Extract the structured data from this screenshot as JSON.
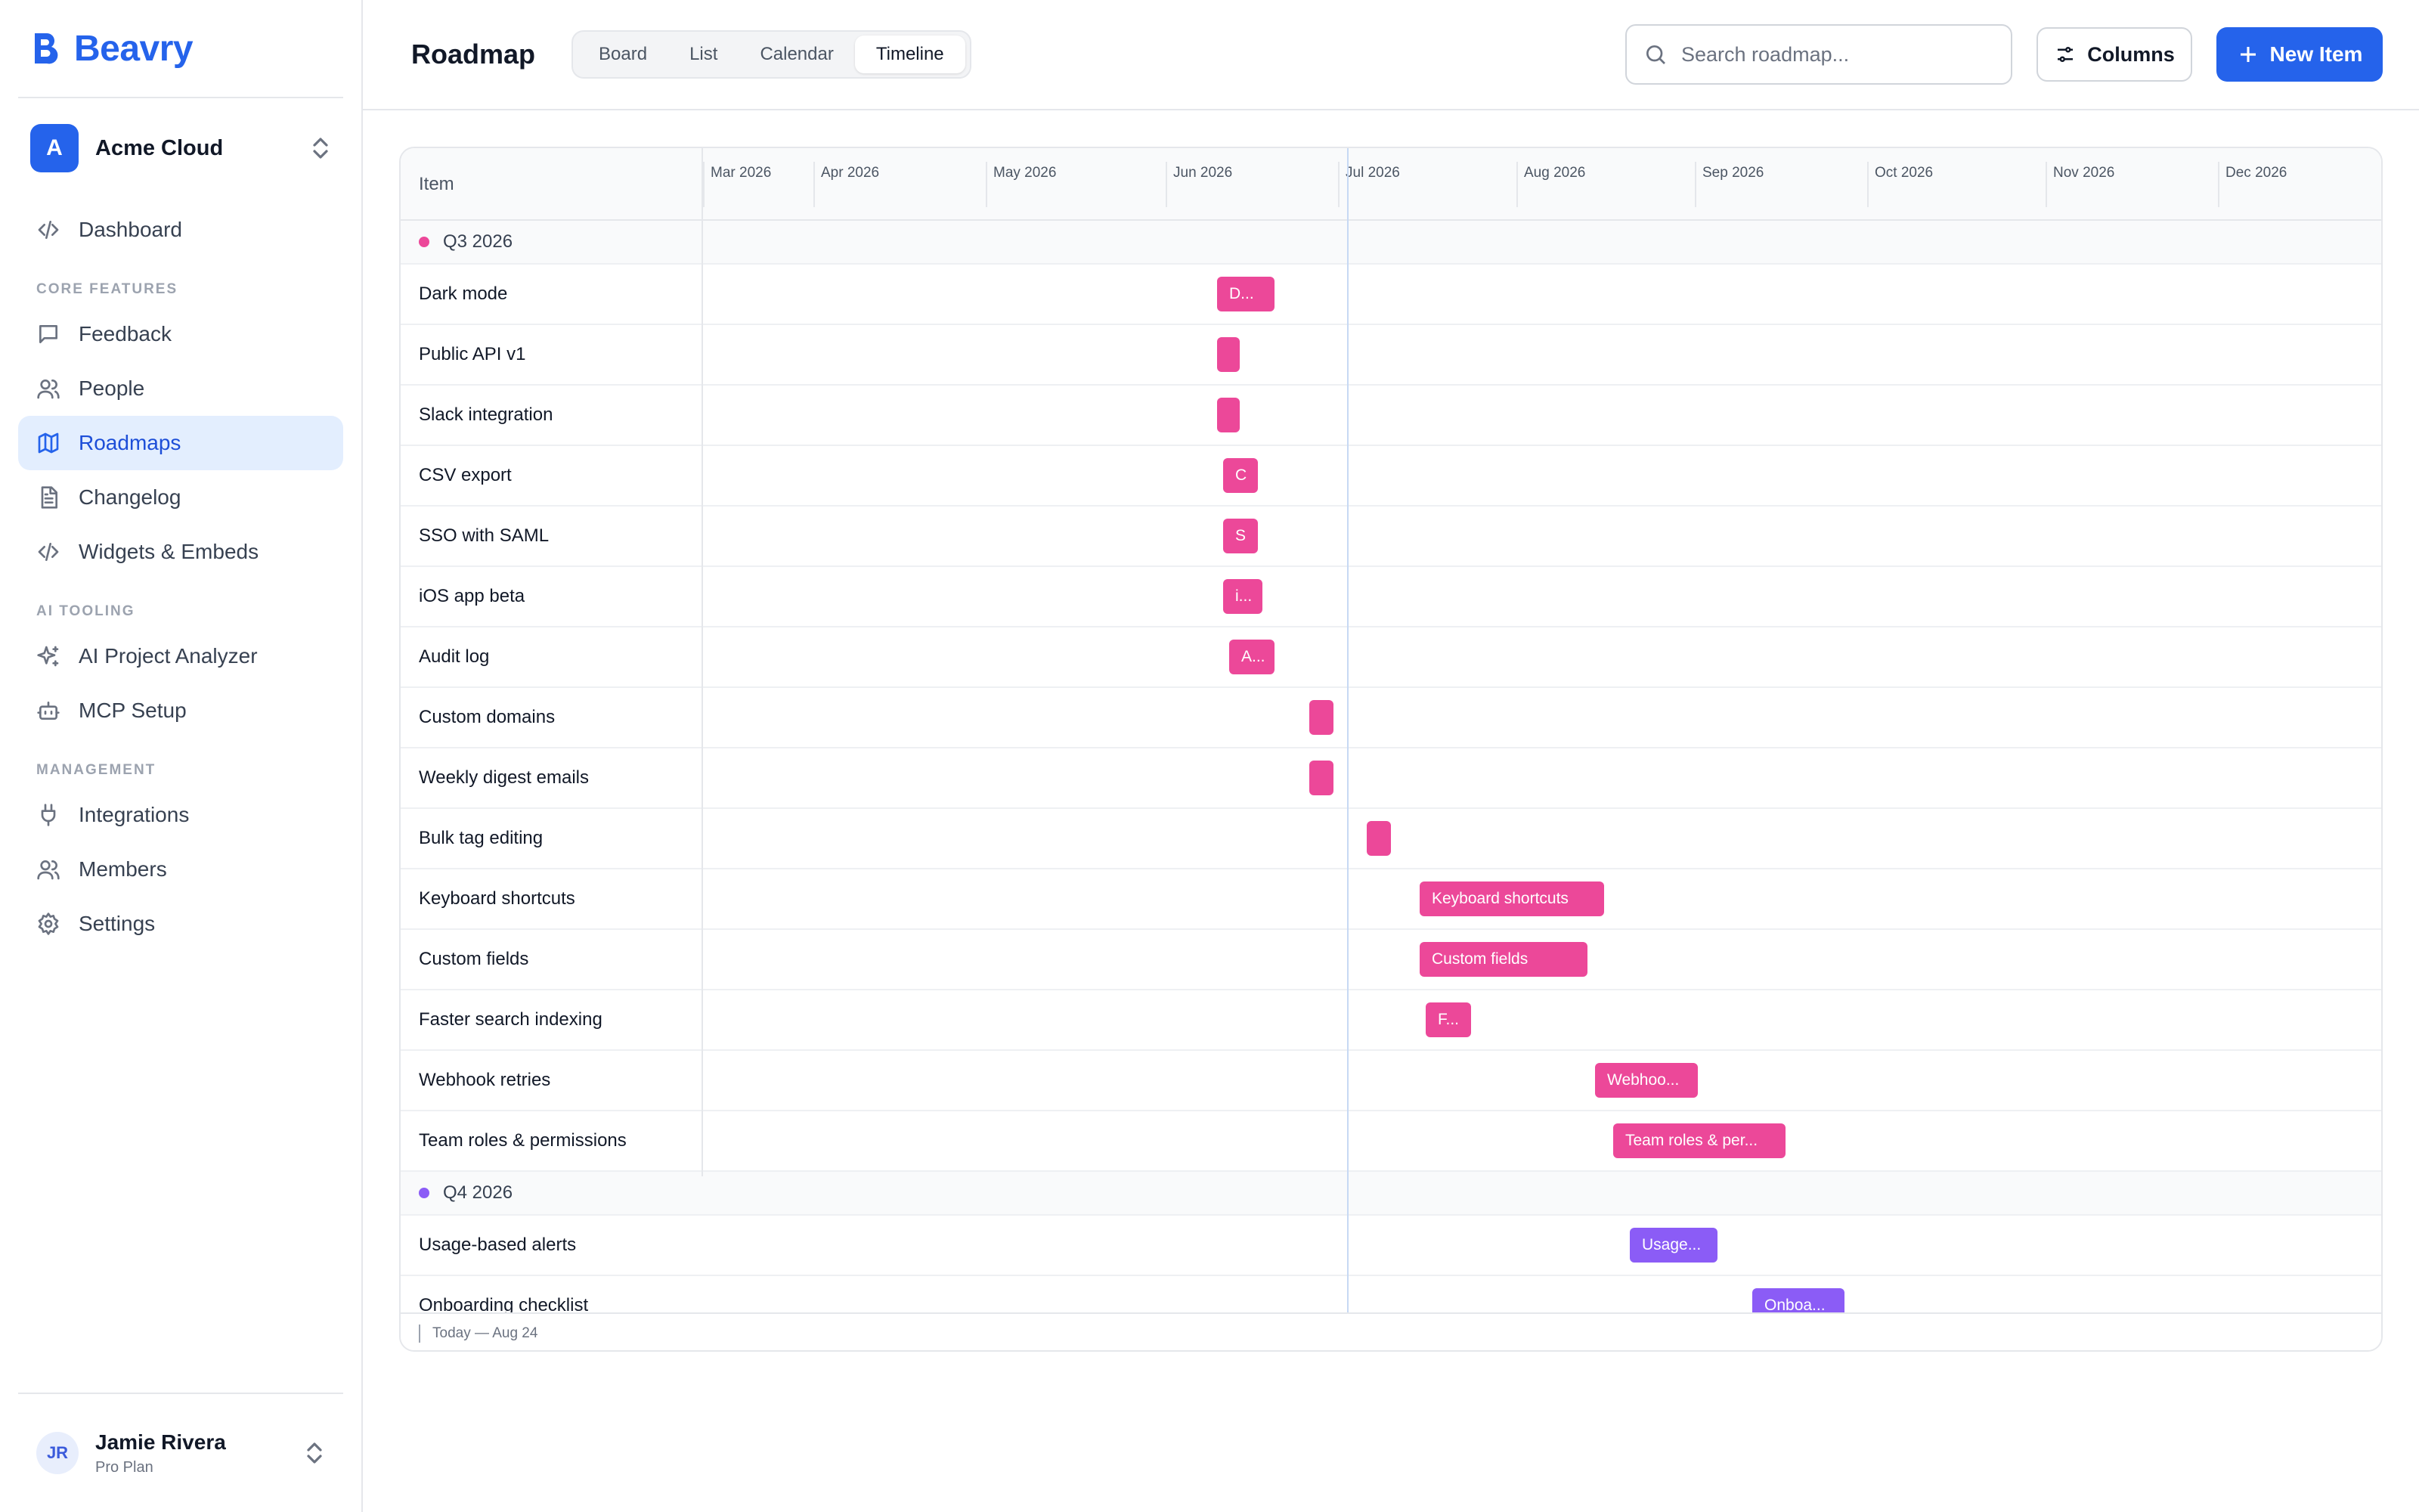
{
  "brand": {
    "name": "Beavry",
    "accent": "#2563eb"
  },
  "workspace": {
    "initial": "A",
    "name": "Acme Cloud"
  },
  "nav": {
    "dashboard": "Dashboard",
    "sections": {
      "core": "CORE FEATURES",
      "ai": "AI TOOLING",
      "management": "MANAGEMENT"
    },
    "feedback": "Feedback",
    "people": "People",
    "roadmaps": "Roadmaps",
    "changelog": "Changelog",
    "widgets": "Widgets & Embeds",
    "ai_analyzer": "AI Project Analyzer",
    "mcp": "MCP Setup",
    "integrations": "Integrations",
    "members": "Members",
    "settings": "Settings"
  },
  "user": {
    "initials": "JR",
    "name": "Jamie Rivera",
    "plan": "Pro Plan"
  },
  "header": {
    "title": "Roadmap",
    "tabs": [
      "Board",
      "List",
      "Calendar",
      "Timeline"
    ],
    "active_tab": "Timeline",
    "search_placeholder": "Search roadmap...",
    "columns_label": "Columns",
    "new_item_label": "New Item"
  },
  "timeline": {
    "item_column": "Item",
    "months": [
      "Mar 2026",
      "Apr 2026",
      "May 2026",
      "Jun 2026",
      "Jul 2026",
      "Aug 2026",
      "Sep 2026",
      "Oct 2026",
      "Nov 2026",
      "Dec 2026"
    ],
    "today_label": "Today — Aug 24",
    "groups": [
      {
        "label": "Q3 2026",
        "color": "#ec4899",
        "items": [
          {
            "name": "Dark mode",
            "bar_label": "D..."
          },
          {
            "name": "Public API v1",
            "bar_label": ""
          },
          {
            "name": "Slack integration",
            "bar_label": ""
          },
          {
            "name": "CSV export",
            "bar_label": "C"
          },
          {
            "name": "SSO with SAML",
            "bar_label": "S"
          },
          {
            "name": "iOS app beta",
            "bar_label": "i..."
          },
          {
            "name": "Audit log",
            "bar_label": "A..."
          },
          {
            "name": "Custom domains",
            "bar_label": ""
          },
          {
            "name": "Weekly digest emails",
            "bar_label": ""
          },
          {
            "name": "Bulk tag editing",
            "bar_label": ""
          },
          {
            "name": "Keyboard shortcuts",
            "bar_label": "Keyboard shortcuts"
          },
          {
            "name": "Custom fields",
            "bar_label": "Custom fields"
          },
          {
            "name": "Faster search indexing",
            "bar_label": "F..."
          },
          {
            "name": "Webhook retries",
            "bar_label": "Webhoo..."
          },
          {
            "name": "Team roles & permissions",
            "bar_label": "Team roles & per..."
          }
        ]
      },
      {
        "label": "Q4 2026",
        "color": "#8b5cf6",
        "items": [
          {
            "name": "Usage-based alerts",
            "bar_label": "Usage..."
          },
          {
            "name": "Onboarding checklist",
            "bar_label": "Onboa..."
          }
        ]
      }
    ]
  }
}
